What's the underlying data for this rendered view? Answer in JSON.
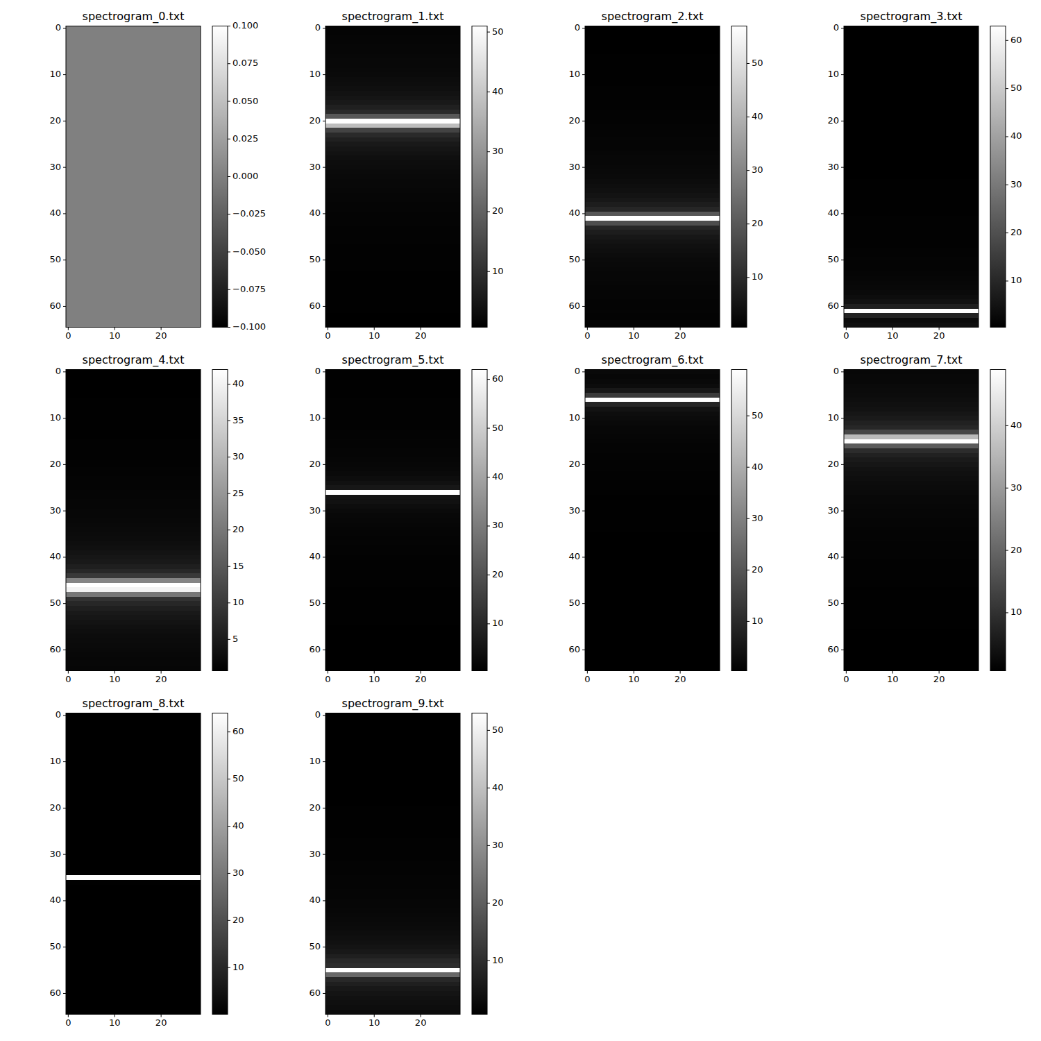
{
  "chart_data": [
    {
      "type": "heatmap",
      "title": "spectrogram_0.txt",
      "color": "gray",
      "xlim": [
        -0.5,
        28.5
      ],
      "ylim": [
        64.5,
        -0.5
      ],
      "xticks": [
        0,
        10,
        20
      ],
      "yticks": [
        0,
        10,
        20,
        30,
        40,
        50,
        60
      ],
      "cells": [
        0,
        0,
        0,
        0,
        0,
        0,
        0,
        0,
        0,
        0,
        0,
        0,
        0,
        0,
        0,
        0,
        0,
        0,
        0,
        0,
        0,
        0,
        0,
        0,
        0,
        0,
        0,
        0,
        0,
        0,
        0,
        0,
        0,
        0,
        0,
        0,
        0,
        0,
        0,
        0,
        0,
        0,
        0,
        0,
        0,
        0,
        0,
        0,
        0,
        0,
        0,
        0,
        0,
        0,
        0,
        0,
        0,
        0,
        0,
        0,
        0,
        0,
        0,
        0,
        0
      ],
      "color_range": [
        -0.1,
        0.1
      ],
      "color_ticks": [
        {
          "value": -0.1,
          "label": "−0.100"
        },
        {
          "value": -0.075,
          "label": "−0.075"
        },
        {
          "value": -0.05,
          "label": "−0.050"
        },
        {
          "value": -0.025,
          "label": "−0.025"
        },
        {
          "value": 0,
          "label": "0.000"
        },
        {
          "value": 0.025,
          "label": "0.025"
        },
        {
          "value": 0.05,
          "label": "0.050"
        },
        {
          "value": 0.075,
          "label": "0.075"
        },
        {
          "value": 0.1,
          "label": "0.100"
        }
      ]
    },
    {
      "type": "heatmap",
      "title": "spectrogram_1.txt",
      "color": "gray",
      "xlim": [
        -0.5,
        28.5
      ],
      "ylim": [
        64.5,
        -0.5
      ],
      "xticks": [
        0,
        10,
        20
      ],
      "yticks": [
        0,
        10,
        20,
        30,
        40,
        50,
        60
      ],
      "cells": [
        1.5,
        1.5,
        1.6,
        1.7,
        1.8,
        1.9,
        2.0,
        2.2,
        2.3,
        2.5,
        2.7,
        3.0,
        3.3,
        3.7,
        4.2,
        4.8,
        5.7,
        7,
        9,
        18,
        51,
        38,
        14,
        9,
        7,
        5.7,
        4.8,
        4.2,
        3.7,
        3.3,
        3.0,
        2.7,
        2.5,
        2.3,
        2.2,
        2.0,
        1.9,
        1.8,
        1.7,
        1.6,
        1.5,
        1.5,
        1.4,
        1.3,
        1.3,
        1.2,
        1.2,
        1.1,
        1.1,
        1.1,
        1.0,
        1.0,
        1.0,
        0.9,
        0.9,
        0.9,
        0.9,
        0.8,
        0.8,
        0.8,
        0.8,
        0.8,
        0.7,
        0.7,
        0.7
      ],
      "color_range": [
        0.7,
        51
      ],
      "color_ticks": [
        10,
        20,
        30,
        40,
        50
      ]
    },
    {
      "type": "heatmap",
      "title": "spectrogram_2.txt",
      "color": "gray",
      "xlim": [
        -0.5,
        28.5
      ],
      "ylim": [
        64.5,
        -0.5
      ],
      "xticks": [
        0,
        10,
        20
      ],
      "yticks": [
        0,
        10,
        20,
        30,
        40,
        50,
        60
      ],
      "cells": [
        0.7,
        0.8,
        0.8,
        0.8,
        0.8,
        0.8,
        0.9,
        0.9,
        0.9,
        0.9,
        1.0,
        1.0,
        1.0,
        1.1,
        1.1,
        1.1,
        1.2,
        1.2,
        1.3,
        1.3,
        1.4,
        1.5,
        1.5,
        1.6,
        1.7,
        1.8,
        1.9,
        2.0,
        2.2,
        2.3,
        2.5,
        2.7,
        3.0,
        3.3,
        3.7,
        4.2,
        4.8,
        5.7,
        7,
        9,
        20,
        57,
        18,
        9,
        7,
        5.7,
        4.8,
        4.2,
        3.7,
        3.3,
        3.0,
        2.7,
        2.5,
        2.3,
        2.2,
        2.0,
        1.9,
        1.8,
        1.7,
        1.6,
        1.5,
        1.5,
        1.4,
        1.3,
        1.3
      ],
      "color_range": [
        0.7,
        57
      ],
      "color_ticks": [
        10,
        20,
        30,
        40,
        50
      ]
    },
    {
      "type": "heatmap",
      "title": "spectrogram_3.txt",
      "color": "gray",
      "xlim": [
        -0.5,
        28.5
      ],
      "ylim": [
        64.5,
        -0.5
      ],
      "xticks": [
        0,
        10,
        20
      ],
      "yticks": [
        0,
        10,
        20,
        30,
        40,
        50,
        60
      ],
      "cells": [
        0.4,
        0.4,
        0.4,
        0.4,
        0.4,
        0.4,
        0.4,
        0.4,
        0.4,
        0.4,
        0.4,
        0.4,
        0.4,
        0.4,
        0.4,
        0.4,
        0.4,
        0.4,
        0.4,
        0.4,
        0.4,
        0.4,
        0.4,
        0.4,
        0.4,
        0.4,
        0.5,
        0.5,
        0.5,
        0.5,
        0.5,
        0.5,
        0.5,
        0.6,
        0.6,
        0.6,
        0.6,
        0.6,
        0.7,
        0.7,
        0.7,
        0.8,
        0.8,
        0.8,
        0.9,
        0.9,
        1.0,
        1.0,
        1.1,
        1.2,
        1.3,
        1.4,
        1.5,
        1.7,
        1.9,
        2.1,
        2.4,
        2.9,
        3.5,
        4.5,
        8,
        63,
        9,
        3,
        4
      ],
      "color_range": [
        0.4,
        63
      ],
      "color_ticks": [
        10,
        20,
        30,
        40,
        50,
        60
      ]
    },
    {
      "type": "heatmap",
      "title": "spectrogram_4.txt",
      "color": "gray",
      "xlim": [
        -0.5,
        28.5
      ],
      "ylim": [
        64.5,
        -0.5
      ],
      "xticks": [
        0,
        10,
        20
      ],
      "yticks": [
        0,
        10,
        20,
        30,
        40,
        50,
        60
      ],
      "cells": [
        0.7,
        0.7,
        0.7,
        0.7,
        0.7,
        0.7,
        0.8,
        0.8,
        0.8,
        0.8,
        0.8,
        0.9,
        0.9,
        0.9,
        0.9,
        1.0,
        1.0,
        1.0,
        1.1,
        1.1,
        1.1,
        1.2,
        1.2,
        1.3,
        1.3,
        1.4,
        1.5,
        1.5,
        1.6,
        1.7,
        1.8,
        1.9,
        2.0,
        2.2,
        2.3,
        2.5,
        2.7,
        3.0,
        3.3,
        3.7,
        4.2,
        4.8,
        5.7,
        7,
        10,
        22,
        42,
        40,
        20,
        9,
        7,
        5.7,
        4.8,
        4.2,
        3.7,
        3.3,
        3.0,
        2.7,
        2.5,
        2.3,
        2.2,
        2.0,
        1.9,
        1.8,
        1.7
      ],
      "color_range": [
        0.7,
        42
      ],
      "color_ticks": [
        5,
        10,
        15,
        20,
        25,
        30,
        35,
        40
      ]
    },
    {
      "type": "heatmap",
      "title": "spectrogram_5.txt",
      "color": "gray",
      "xlim": [
        -0.5,
        28.5
      ],
      "ylim": [
        64.5,
        -0.5
      ],
      "xticks": [
        0,
        10,
        20
      ],
      "yticks": [
        0,
        10,
        20,
        30,
        40,
        50,
        60
      ],
      "cells": [
        0.6,
        0.6,
        0.6,
        0.7,
        0.7,
        0.7,
        0.8,
        0.8,
        0.8,
        0.9,
        0.9,
        1.0,
        1.0,
        1.1,
        1.2,
        1.3,
        1.4,
        1.5,
        1.7,
        1.9,
        2.1,
        2.4,
        2.9,
        3.5,
        4.5,
        6,
        62,
        5,
        4.5,
        3.5,
        2.9,
        2.4,
        2.1,
        1.9,
        1.7,
        1.5,
        1.4,
        1.3,
        1.2,
        1.1,
        1.0,
        1.0,
        0.9,
        0.9,
        0.8,
        0.8,
        0.8,
        0.7,
        0.7,
        0.7,
        0.6,
        0.6,
        0.6,
        0.6,
        0.6,
        0.5,
        0.5,
        0.5,
        0.5,
        0.5,
        0.5,
        0.5,
        0.4,
        0.4,
        0.4
      ],
      "color_range": [
        0.4,
        62
      ],
      "color_ticks": [
        10,
        20,
        30,
        40,
        50,
        60
      ]
    },
    {
      "type": "heatmap",
      "title": "spectrogram_6.txt",
      "color": "gray",
      "xlim": [
        -0.5,
        28.5
      ],
      "ylim": [
        64.5,
        -0.5
      ],
      "xticks": [
        0,
        10,
        20
      ],
      "yticks": [
        0,
        10,
        20,
        30,
        40,
        50,
        60
      ],
      "cells": [
        2.5,
        2.0,
        2.4,
        3.2,
        6,
        14,
        59,
        9,
        4.5,
        3.5,
        2.9,
        2.4,
        2.1,
        1.9,
        1.7,
        1.5,
        1.4,
        1.3,
        1.2,
        1.1,
        1.0,
        1.0,
        0.9,
        0.9,
        0.8,
        0.8,
        0.8,
        0.7,
        0.7,
        0.7,
        0.6,
        0.6,
        0.6,
        0.6,
        0.6,
        0.5,
        0.5,
        0.5,
        0.5,
        0.5,
        0.5,
        0.5,
        0.4,
        0.4,
        0.4,
        0.4,
        0.4,
        0.4,
        0.4,
        0.4,
        0.4,
        0.4,
        0.4,
        0.4,
        0.4,
        0.4,
        0.4,
        0.4,
        0.4,
        0.4,
        0.4,
        0.4,
        0.4,
        0.4,
        0.4
      ],
      "color_range": [
        0.4,
        59
      ],
      "color_ticks": [
        10,
        20,
        30,
        40,
        50
      ]
    },
    {
      "type": "heatmap",
      "title": "spectrogram_7.txt",
      "color": "gray",
      "xlim": [
        -0.5,
        28.5
      ],
      "ylim": [
        64.5,
        -0.5
      ],
      "xticks": [
        0,
        10,
        20
      ],
      "yticks": [
        0,
        10,
        20,
        30,
        40,
        50,
        60
      ],
      "cells": [
        2.0,
        2.2,
        2.3,
        2.5,
        2.7,
        3.0,
        3.3,
        3.7,
        4.2,
        4.8,
        5.7,
        7,
        8,
        14,
        36,
        49,
        18,
        9,
        7,
        5.7,
        4.8,
        4.2,
        3.7,
        3.3,
        3.0,
        2.7,
        2.5,
        2.3,
        2.2,
        2.0,
        1.9,
        1.8,
        1.7,
        1.6,
        1.5,
        1.5,
        1.4,
        1.3,
        1.3,
        1.2,
        1.2,
        1.1,
        1.1,
        1.1,
        1.0,
        1.0,
        1.0,
        0.9,
        0.9,
        0.9,
        0.9,
        0.8,
        0.8,
        0.8,
        0.8,
        0.8,
        0.7,
        0.7,
        0.7,
        0.7,
        0.7,
        0.7,
        0.7,
        0.7,
        0.7
      ],
      "color_range": [
        0.7,
        49
      ],
      "color_ticks": [
        10,
        20,
        30,
        40
      ]
    },
    {
      "type": "heatmap",
      "title": "spectrogram_8.txt",
      "color": "gray",
      "xlim": [
        -0.5,
        28.5
      ],
      "ylim": [
        64.5,
        -0.5
      ],
      "xticks": [
        0,
        10,
        20
      ],
      "yticks": [
        0,
        10,
        20,
        30,
        40,
        50,
        60
      ],
      "cells": [
        0.1,
        0.1,
        0.1,
        0.1,
        0.1,
        0.1,
        0.1,
        0.1,
        0.1,
        0.1,
        0.1,
        0.1,
        0.1,
        0.1,
        0.1,
        0.1,
        0.1,
        0.1,
        0.1,
        0.1,
        0.1,
        0.1,
        0.1,
        0.1,
        0.1,
        0.1,
        0.1,
        0.1,
        0.1,
        0.1,
        0.1,
        0.1,
        0.1,
        0.1,
        0.4,
        64,
        0.4,
        0.1,
        0.1,
        0.1,
        0.1,
        0.1,
        0.1,
        0.1,
        0.1,
        0.1,
        0.1,
        0.1,
        0.1,
        0.1,
        0.1,
        0.1,
        0.1,
        0.1,
        0.1,
        0.1,
        0.1,
        0.1,
        0.1,
        0.1,
        0.1,
        0.1,
        0.1,
        0.1,
        0.1
      ],
      "color_range": [
        0.1,
        64
      ],
      "color_ticks": [
        10,
        20,
        30,
        40,
        50,
        60
      ]
    },
    {
      "type": "heatmap",
      "title": "spectrogram_9.txt",
      "color": "gray",
      "xlim": [
        -0.5,
        28.5
      ],
      "ylim": [
        64.5,
        -0.5
      ],
      "xticks": [
        0,
        10,
        20
      ],
      "yticks": [
        0,
        10,
        20,
        30,
        40,
        50,
        60
      ],
      "cells": [
        0.7,
        0.7,
        0.7,
        0.7,
        0.7,
        0.7,
        0.7,
        0.7,
        0.7,
        0.7,
        0.7,
        0.7,
        0.7,
        0.7,
        0.7,
        0.8,
        0.8,
        0.8,
        0.8,
        0.8,
        0.9,
        0.9,
        0.9,
        0.9,
        1.0,
        1.0,
        1.0,
        1.1,
        1.1,
        1.1,
        1.2,
        1.2,
        1.3,
        1.3,
        1.4,
        1.5,
        1.5,
        1.6,
        1.7,
        1.8,
        1.9,
        2.0,
        2.2,
        2.3,
        2.5,
        2.7,
        3.0,
        3.3,
        3.7,
        4.2,
        4.8,
        5.7,
        7,
        9,
        10,
        53,
        22,
        9,
        7,
        5.7,
        4.8,
        4.2,
        3.7,
        3.3,
        3.0
      ],
      "color_range": [
        0.7,
        53
      ],
      "color_ticks": [
        10,
        20,
        30,
        40,
        50
      ]
    }
  ]
}
